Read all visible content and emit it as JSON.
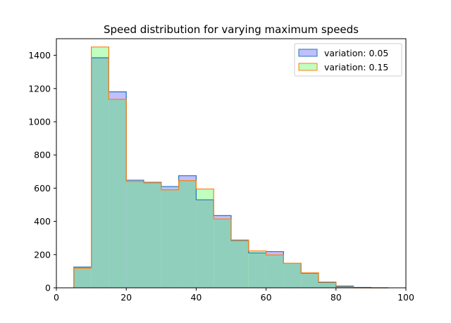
{
  "chart_data": {
    "type": "histogram",
    "title": "Speed distribution for varying maximum speeds",
    "xlabel": "",
    "ylabel": "",
    "xlim": [
      0,
      100
    ],
    "ylim": [
      0,
      1500
    ],
    "x_ticks": [
      0,
      20,
      40,
      60,
      80,
      100
    ],
    "y_ticks": [
      0,
      200,
      400,
      600,
      800,
      1000,
      1200,
      1400
    ],
    "bin_edges": [
      5,
      10,
      15,
      20,
      25,
      30,
      35,
      40,
      45,
      50,
      55,
      60,
      65,
      70,
      75,
      80,
      85,
      90,
      95
    ],
    "grid": false,
    "legend_position": "top-right",
    "series": [
      {
        "name": "variation: 0.05",
        "fill_color": "#c0c0ff",
        "edge_color": "#1f77b4",
        "values": [
          125,
          1385,
          1180,
          648,
          635,
          610,
          675,
          530,
          435,
          285,
          210,
          218,
          148,
          88,
          32,
          8,
          2,
          0
        ]
      },
      {
        "name": "variation: 0.15",
        "fill_color": "#c0ffc0",
        "edge_color": "#ff7f0e",
        "values": [
          118,
          1450,
          1135,
          640,
          632,
          590,
          645,
          595,
          415,
          288,
          222,
          198,
          148,
          90,
          35,
          12,
          0,
          0
        ]
      }
    ],
    "overlap_color": "#90cfbc"
  }
}
